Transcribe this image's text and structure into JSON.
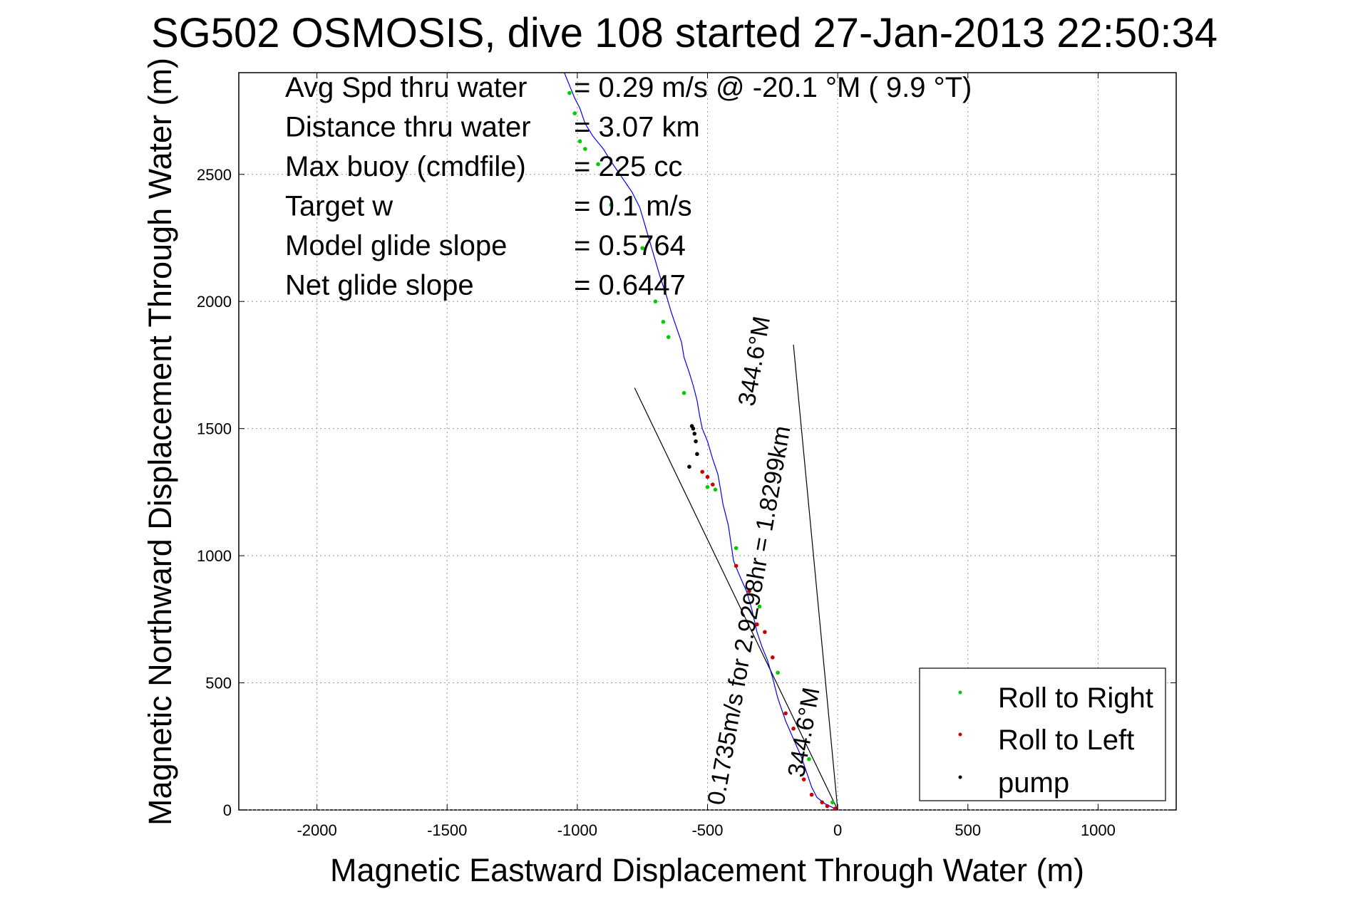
{
  "chart_data": {
    "type": "scatter",
    "title": "SG502 OSMOSIS, dive 108 started 27-Jan-2013 22:50:34",
    "xlabel": "Magnetic Eastward Displacement Through Water (m)",
    "ylabel": "Magnetic Northward Displacement Through Water (m)",
    "xlim": [
      -2300,
      1300
    ],
    "ylim": [
      0,
      2900
    ],
    "xticks": [
      -2000,
      -1500,
      -1000,
      -500,
      0,
      500,
      1000
    ],
    "yticks": [
      0,
      500,
      1000,
      1500,
      2000,
      2500
    ],
    "grid": true,
    "legend_position": "bottom-right",
    "stats": [
      {
        "label": "Avg Spd thru water",
        "value": "=  0.29 m/s @ -20.1 °M (  9.9 °T)"
      },
      {
        "label": "Distance thru water",
        "value": "=  3.07 km"
      },
      {
        "label": "Max buoy (cmdfile)",
        "value": "= 225 cc"
      },
      {
        "label": "Target w",
        "value": "= 0.1 m/s"
      },
      {
        "label": "Model glide slope",
        "value": "= 0.5764"
      },
      {
        "label": "Net glide slope",
        "value": "= 0.6447"
      }
    ],
    "track": {
      "color": "#0000ff",
      "x": [
        0,
        -20,
        -50,
        -80,
        -100,
        -120,
        -140,
        -170,
        -200,
        -230,
        -250,
        -270,
        -290,
        -310,
        -330,
        -350,
        -380,
        -400,
        -410,
        -420,
        -440,
        -450,
        -460,
        -480,
        -500,
        -520,
        -530,
        -540,
        -555,
        -570,
        -590,
        -600,
        -620,
        -640,
        -660,
        -680,
        -700,
        -720,
        -740,
        -760,
        -790,
        -830,
        -870,
        -900,
        -940,
        -970,
        -990,
        -1010,
        -1030,
        -1050
      ],
      "y": [
        0,
        10,
        25,
        50,
        90,
        150,
        210,
        280,
        350,
        440,
        520,
        590,
        640,
        700,
        790,
        860,
        930,
        980,
        1050,
        1120,
        1200,
        1260,
        1320,
        1380,
        1450,
        1500,
        1550,
        1610,
        1670,
        1720,
        1780,
        1840,
        1900,
        1960,
        2030,
        2090,
        2160,
        2230,
        2300,
        2370,
        2430,
        2490,
        2550,
        2600,
        2650,
        2700,
        2760,
        2800,
        2850,
        2900
      ]
    },
    "series": [
      {
        "name": "Roll to Right",
        "color": "#00cc00",
        "x": [
          -20,
          -110,
          -230,
          -300,
          -390,
          -470,
          -500,
          -590,
          -650,
          -670,
          -700,
          -750,
          -870,
          -920,
          -970,
          -990,
          -1010,
          -1030
        ],
        "y": [
          30,
          200,
          540,
          800,
          1030,
          1260,
          1270,
          1640,
          1860,
          1920,
          2000,
          2210,
          2380,
          2540,
          2600,
          2630,
          2740,
          2820
        ]
      },
      {
        "name": "Roll to Left",
        "color": "#cc0000",
        "x": [
          -10,
          -40,
          -60,
          -100,
          -130,
          -170,
          -200,
          -250,
          -280,
          -310,
          -340,
          -390,
          -480,
          -500,
          -520
        ],
        "y": [
          5,
          15,
          30,
          60,
          120,
          320,
          380,
          600,
          700,
          730,
          860,
          960,
          1280,
          1310,
          1330
        ]
      },
      {
        "name": "pump",
        "color": "#000000",
        "x": [
          -540,
          -545,
          -550,
          -555,
          -560,
          -570
        ],
        "y": [
          1400,
          1450,
          1480,
          1500,
          1510,
          1350
        ]
      }
    ],
    "current_lines": [
      {
        "x": [
          0,
          -780
        ],
        "y": [
          0,
          1660
        ]
      },
      {
        "x": [
          0,
          -170
        ],
        "y": [
          0,
          1830
        ]
      }
    ],
    "annotations": [
      {
        "text": "0.1735m/s for 2.9298hr = 1.8299km",
        "x": -310,
        "y": 760,
        "rotation": -80
      },
      {
        "text": "344.6°M",
        "x": -100,
        "y": 300,
        "rotation": -80
      },
      {
        "text": "344.6°M",
        "x": -290,
        "y": 1760,
        "rotation": -80
      }
    ]
  }
}
